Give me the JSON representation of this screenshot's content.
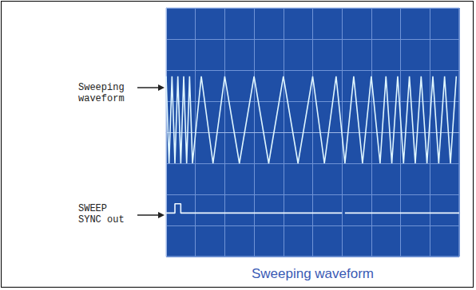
{
  "figure": {
    "caption": "Sweeping waveform",
    "labels": [
      "Sweeping\nwaveform",
      "SWEEP\nSYNC out"
    ]
  },
  "chart_data": {
    "type": "line",
    "grid": true,
    "tick_labels": false,
    "xlim": [
      0,
      10
    ],
    "xticks": [
      0,
      1,
      2,
      3,
      4,
      5,
      6,
      7,
      8,
      9,
      10
    ],
    "ylim": [
      -4,
      4
    ],
    "yticks": [
      -4,
      -3,
      -2,
      -1,
      0,
      1,
      2,
      3,
      4
    ],
    "series": [
      {
        "name": "Sweeping waveform",
        "color": "#dff6ff",
        "line_style": "solid",
        "x": [
          0,
          0.1,
          0.2,
          0.3,
          0.4,
          0.5,
          0.6,
          0.7,
          0.8,
          0.9,
          1.2,
          1.6,
          2.0,
          2.5,
          3.0,
          3.5,
          4.0,
          4.5,
          5.0,
          5.4,
          5.8,
          6.1,
          6.4,
          6.7,
          7.0,
          7.3,
          7.5,
          7.7,
          7.9,
          8.1,
          8.3,
          8.5,
          8.7,
          8.9,
          9.1,
          9.3,
          9.5,
          9.7,
          9.9
        ],
        "values": [
          1.8,
          -1.0,
          1.8,
          -1.0,
          1.8,
          -1.0,
          1.8,
          -1.0,
          1.8,
          -1.0,
          1.8,
          -1.0,
          1.8,
          -1.0,
          1.8,
          -1.0,
          1.8,
          -1.0,
          1.8,
          -1.0,
          1.8,
          -1.0,
          1.8,
          -1.0,
          1.8,
          -1.0,
          1.8,
          -1.0,
          1.8,
          -1.0,
          1.8,
          -1.0,
          1.8,
          -1.0,
          1.8,
          -1.0,
          1.8,
          -1.0,
          1.8
        ]
      },
      {
        "name": "SWEEP SYNC out",
        "color": "#eef8ff",
        "line_style": "solid",
        "x": [
          0,
          0.3,
          0.3,
          0.5,
          0.5,
          6.0,
          6.05,
          6.1,
          10
        ],
        "values": [
          -2.6,
          -2.6,
          -2.3,
          -2.3,
          -2.6,
          -2.6,
          null,
          -2.6,
          -2.6
        ]
      }
    ]
  }
}
